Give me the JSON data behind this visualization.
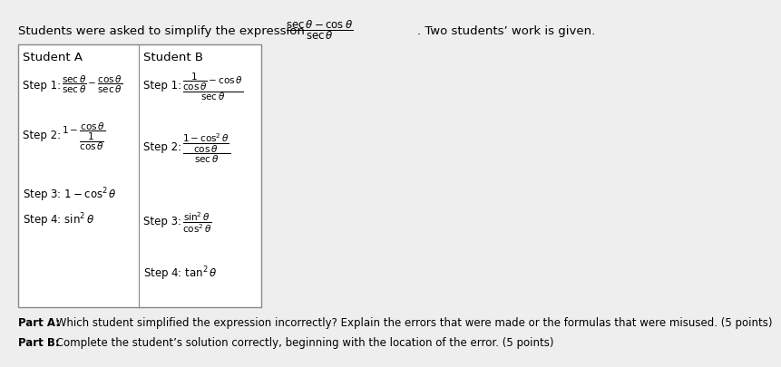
{
  "bg_color": "#eeeeee",
  "box_bg": "#ffffff",
  "header_intro": "Students were asked to simplify the expression",
  "header_suffix": ". Two students’ work is given.",
  "student_a_label": "Student A",
  "student_b_label": "Student B",
  "part_a_bold": "Part A:",
  "part_a_rest": " Which student simplified the expression incorrectly? Explain the errors that were made or the formulas that were misused. (5 points)",
  "part_b_bold": "Part B:",
  "part_b_rest": " Complete the student’s solution correctly, beginning with the location of the error. (5 points)"
}
